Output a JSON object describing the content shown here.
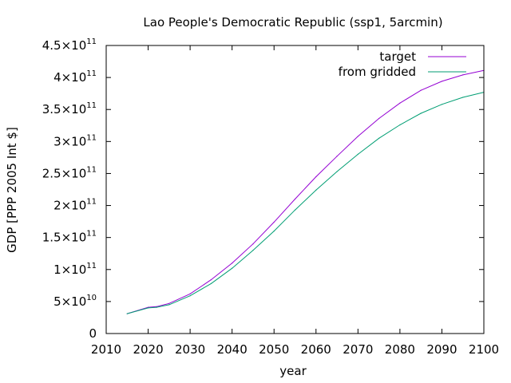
{
  "chart_data": {
    "type": "line",
    "title": "Lao People's Democratic Republic (ssp1, 5arcmin)",
    "xlabel": "year",
    "ylabel": "GDP [PPP 2005 Int $]",
    "xlim": [
      2010,
      2100
    ],
    "ylim": [
      0,
      450000000000
    ],
    "xticks": [
      2010,
      2020,
      2030,
      2040,
      2050,
      2060,
      2070,
      2080,
      2090,
      2100
    ],
    "xtick_labels": [
      "2010",
      "2020",
      "2030",
      "2040",
      "2050",
      "2060",
      "2070",
      "2080",
      "2090",
      "2100"
    ],
    "yticks": [
      {
        "value": 0,
        "mantissa": "0",
        "exp": ""
      },
      {
        "value": 50000000000,
        "mantissa": "5×10",
        "exp": "10"
      },
      {
        "value": 100000000000,
        "mantissa": "1×10",
        "exp": "11"
      },
      {
        "value": 150000000000,
        "mantissa": "1.5×10",
        "exp": "11"
      },
      {
        "value": 200000000000,
        "mantissa": "2×10",
        "exp": "11"
      },
      {
        "value": 250000000000,
        "mantissa": "2.5×10",
        "exp": "11"
      },
      {
        "value": 300000000000,
        "mantissa": "3×10",
        "exp": "11"
      },
      {
        "value": 350000000000,
        "mantissa": "3.5×10",
        "exp": "11"
      },
      {
        "value": 400000000000,
        "mantissa": "4×10",
        "exp": "11"
      },
      {
        "value": 450000000000,
        "mantissa": "4.5×10",
        "exp": "11"
      }
    ],
    "grid": false,
    "legend_position": "top-right",
    "x": [
      2015,
      2020,
      2022,
      2025,
      2030,
      2035,
      2040,
      2045,
      2050,
      2055,
      2060,
      2065,
      2070,
      2075,
      2080,
      2085,
      2090,
      2095,
      2100
    ],
    "series": [
      {
        "name": "target",
        "color": "#9400d3",
        "values": [
          31000000000,
          41000000000,
          42000000000,
          47000000000,
          62000000000,
          84000000000,
          110000000000,
          140000000000,
          174000000000,
          210000000000,
          245000000000,
          277000000000,
          308000000000,
          336000000000,
          360000000000,
          380000000000,
          394000000000,
          404000000000,
          411000000000
        ]
      },
      {
        "name": "from gridded",
        "color": "#009e73",
        "values": [
          31000000000,
          40000000000,
          41000000000,
          45000000000,
          59000000000,
          78000000000,
          102000000000,
          130000000000,
          160000000000,
          193000000000,
          224000000000,
          253000000000,
          280000000000,
          305000000000,
          326000000000,
          344000000000,
          358000000000,
          369000000000,
          377000000000
        ]
      }
    ]
  }
}
